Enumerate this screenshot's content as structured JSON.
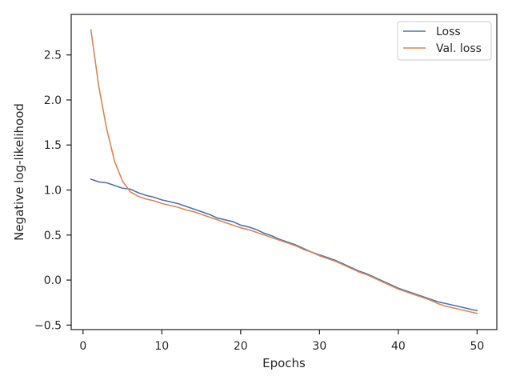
{
  "chart_data": {
    "type": "line",
    "title": "",
    "xlabel": "Epochs",
    "ylabel": "Negative log-likelihood",
    "xlim": [
      -1.5,
      52.5
    ],
    "ylim": [
      -0.55,
      2.95
    ],
    "x_ticks": [
      0,
      10,
      20,
      30,
      40,
      50
    ],
    "x_tick_labels": [
      "0",
      "10",
      "20",
      "30",
      "40",
      "50"
    ],
    "y_ticks": [
      -0.5,
      0.0,
      0.5,
      1.0,
      1.5,
      2.0,
      2.5
    ],
    "y_tick_labels": [
      "−0.5",
      "0.0",
      "0.5",
      "1.0",
      "1.5",
      "2.0",
      "2.5"
    ],
    "grid": false,
    "legend_position": "top-right",
    "x": [
      1,
      2,
      3,
      4,
      5,
      6,
      7,
      8,
      9,
      10,
      11,
      12,
      13,
      14,
      15,
      16,
      17,
      18,
      19,
      20,
      21,
      22,
      23,
      24,
      25,
      26,
      27,
      28,
      29,
      30,
      31,
      32,
      33,
      34,
      35,
      36,
      37,
      38,
      39,
      40,
      41,
      42,
      43,
      44,
      45,
      46,
      47,
      48,
      49,
      50
    ],
    "series": [
      {
        "name": "Loss",
        "color": "#4c72b0",
        "values": [
          1.12,
          1.09,
          1.08,
          1.05,
          1.02,
          1.01,
          0.97,
          0.94,
          0.92,
          0.89,
          0.87,
          0.85,
          0.82,
          0.79,
          0.76,
          0.73,
          0.69,
          0.67,
          0.65,
          0.61,
          0.59,
          0.56,
          0.52,
          0.49,
          0.45,
          0.42,
          0.39,
          0.35,
          0.31,
          0.28,
          0.25,
          0.22,
          0.18,
          0.14,
          0.1,
          0.07,
          0.03,
          -0.01,
          -0.05,
          -0.09,
          -0.12,
          -0.15,
          -0.18,
          -0.21,
          -0.24,
          -0.26,
          -0.28,
          -0.3,
          -0.32,
          -0.34
        ]
      },
      {
        "name": "Val. loss",
        "color": "#dd8452",
        "values": [
          2.78,
          2.15,
          1.68,
          1.32,
          1.1,
          0.98,
          0.93,
          0.9,
          0.88,
          0.85,
          0.83,
          0.81,
          0.78,
          0.76,
          0.73,
          0.7,
          0.67,
          0.64,
          0.61,
          0.58,
          0.56,
          0.53,
          0.5,
          0.47,
          0.44,
          0.41,
          0.38,
          0.34,
          0.31,
          0.27,
          0.24,
          0.21,
          0.17,
          0.13,
          0.09,
          0.06,
          0.02,
          -0.02,
          -0.06,
          -0.1,
          -0.13,
          -0.16,
          -0.19,
          -0.22,
          -0.26,
          -0.29,
          -0.31,
          -0.33,
          -0.35,
          -0.37
        ]
      }
    ]
  }
}
